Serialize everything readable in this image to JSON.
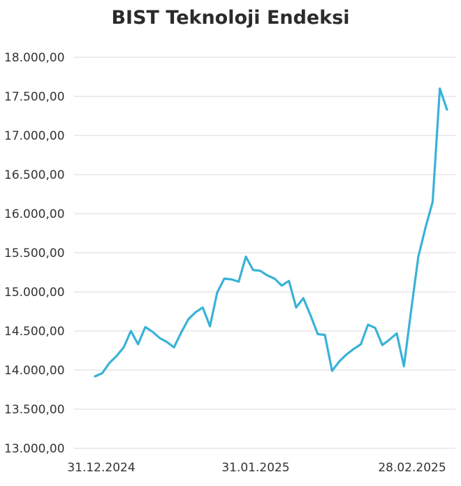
{
  "chart_data": {
    "type": "line",
    "title": "BIST Teknoloji Endeksi",
    "xlabel": "",
    "ylabel": "",
    "ylim": [
      13000,
      18000
    ],
    "y_ticks": [
      "13.000,00",
      "13.500,00",
      "14.000,00",
      "14.500,00",
      "15.000,00",
      "15.500,00",
      "16.000,00",
      "16.500,00",
      "17.000,00",
      "17.500,00",
      "18.000,00"
    ],
    "x_ticks": [
      "31.12.2024",
      "31.01.2025",
      "28.02.2025"
    ],
    "grid": true,
    "legend": "none",
    "line_color": "#3ab2d8",
    "series": [
      {
        "values": [
          13920,
          13960,
          14090,
          14180,
          14290,
          14500,
          14330,
          14550,
          14490,
          14410,
          14360,
          14290,
          14480,
          14650,
          14740,
          14800,
          14560,
          14990,
          15170,
          15160,
          15130,
          15450,
          15280,
          15270,
          15210,
          15170,
          15080,
          15140,
          14800,
          14920,
          14700,
          14460,
          14450,
          13990,
          14110,
          14200,
          14270,
          14330,
          14580,
          14540,
          14320,
          14390,
          14470,
          14050,
          14760,
          15450,
          15820,
          16150,
          17600,
          17330
        ]
      }
    ]
  }
}
